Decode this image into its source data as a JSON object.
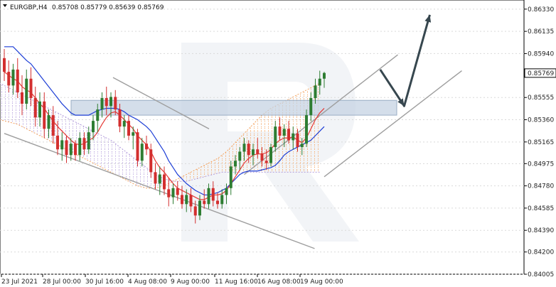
{
  "header": {
    "symbol": "EURGBP,H4",
    "ohlc": "0.85708 0.85779 0.85639 0.85769"
  },
  "colors": {
    "bull": "#2e7d32",
    "bear": "#d32f2f",
    "tenkan": "#e53935",
    "kijun": "#1e3fd6",
    "cloud_orange": "#f4a460",
    "cloud_purple": "#b39ddb",
    "channel": "#9e9e9e",
    "arrow": "#37474f",
    "band": "#c5d3e3",
    "price_label_bg": "#ffffff",
    "grid": "#d9d9d9"
  },
  "chart_data": {
    "type": "candlestick",
    "title": "EURGBP,H4",
    "ylim": [
      0.84005,
      0.8641
    ],
    "y_ticks": [
      "0.86330",
      "0.86135",
      "0.85940",
      "0.85769",
      "0.85555",
      "0.85360",
      "0.85165",
      "0.84975",
      "0.84780",
      "0.84585",
      "0.84390",
      "0.84200",
      "0.84005"
    ],
    "x_ticks": [
      "23 Jul 2021",
      "28 Jul 00:00",
      "30 Jul 16:00",
      "4 Aug 08:00",
      "9 Aug 00:00",
      "11 Aug 16:00",
      "16 Aug 08:00",
      "19 Aug 00:00"
    ],
    "last_price": "0.85769",
    "grid": true,
    "series": [
      {
        "kind": "candles",
        "ohlc": [
          [
            0.859,
            0.8598,
            0.857,
            0.8578
          ],
          [
            0.8578,
            0.8588,
            0.856,
            0.8566
          ],
          [
            0.8566,
            0.8585,
            0.8558,
            0.858
          ],
          [
            0.858,
            0.859,
            0.8555,
            0.856
          ],
          [
            0.856,
            0.8575,
            0.854,
            0.855
          ],
          [
            0.855,
            0.858,
            0.8545,
            0.8572
          ],
          [
            0.8572,
            0.8582,
            0.8548,
            0.8555
          ],
          [
            0.8555,
            0.8565,
            0.853,
            0.8538
          ],
          [
            0.8538,
            0.856,
            0.853,
            0.8552
          ],
          [
            0.8552,
            0.856,
            0.852,
            0.8528
          ],
          [
            0.8528,
            0.8545,
            0.852,
            0.854
          ],
          [
            0.854,
            0.8548,
            0.8515,
            0.8522
          ],
          [
            0.8522,
            0.8535,
            0.8505,
            0.851
          ],
          [
            0.851,
            0.8525,
            0.85,
            0.8518
          ],
          [
            0.8518,
            0.8522,
            0.8498,
            0.8505
          ],
          [
            0.8505,
            0.852,
            0.85,
            0.8515
          ],
          [
            0.8515,
            0.8518,
            0.85,
            0.8505
          ],
          [
            0.8505,
            0.8525,
            0.85,
            0.852
          ],
          [
            0.852,
            0.8525,
            0.8505,
            0.851
          ],
          [
            0.851,
            0.853,
            0.8506,
            0.8525
          ],
          [
            0.8525,
            0.854,
            0.8518,
            0.8535
          ],
          [
            0.8535,
            0.855,
            0.8525,
            0.8545
          ],
          [
            0.8545,
            0.856,
            0.8538,
            0.8555
          ],
          [
            0.8555,
            0.8565,
            0.854,
            0.8548
          ],
          [
            0.8548,
            0.856,
            0.8538,
            0.8556
          ],
          [
            0.8556,
            0.8562,
            0.854,
            0.8545
          ],
          [
            0.8545,
            0.855,
            0.8525,
            0.853
          ],
          [
            0.853,
            0.854,
            0.852,
            0.8535
          ],
          [
            0.8535,
            0.854,
            0.8518,
            0.8522
          ],
          [
            0.8522,
            0.853,
            0.851,
            0.8525
          ],
          [
            0.8525,
            0.8528,
            0.8495,
            0.85
          ],
          [
            0.85,
            0.852,
            0.8495,
            0.8515
          ],
          [
            0.8515,
            0.8522,
            0.8505,
            0.851
          ],
          [
            0.851,
            0.8515,
            0.8485,
            0.849
          ],
          [
            0.849,
            0.8498,
            0.8475,
            0.848
          ],
          [
            0.848,
            0.8495,
            0.847,
            0.8488
          ],
          [
            0.8488,
            0.8495,
            0.847,
            0.8475
          ],
          [
            0.8475,
            0.8485,
            0.846,
            0.8468
          ],
          [
            0.8468,
            0.848,
            0.8462,
            0.8476
          ],
          [
            0.8476,
            0.8482,
            0.8465,
            0.847
          ],
          [
            0.847,
            0.8478,
            0.8458,
            0.8462
          ],
          [
            0.8462,
            0.8475,
            0.8455,
            0.847
          ],
          [
            0.847,
            0.8476,
            0.8455,
            0.846
          ],
          [
            0.846,
            0.8465,
            0.8445,
            0.8452
          ],
          [
            0.8452,
            0.847,
            0.8448,
            0.8465
          ],
          [
            0.8465,
            0.8475,
            0.8458,
            0.8462
          ],
          [
            0.8462,
            0.848,
            0.8458,
            0.8476
          ],
          [
            0.8476,
            0.8482,
            0.846,
            0.8465
          ],
          [
            0.8465,
            0.8472,
            0.8458,
            0.8462
          ],
          [
            0.8462,
            0.8475,
            0.8458,
            0.847
          ],
          [
            0.847,
            0.848,
            0.8462,
            0.8476
          ],
          [
            0.8476,
            0.85,
            0.847,
            0.8495
          ],
          [
            0.8495,
            0.8505,
            0.8488,
            0.85
          ],
          [
            0.85,
            0.8512,
            0.8492,
            0.8508
          ],
          [
            0.8508,
            0.852,
            0.85,
            0.8515
          ],
          [
            0.8515,
            0.8518,
            0.8498,
            0.8505
          ],
          [
            0.8505,
            0.8515,
            0.8496,
            0.851
          ],
          [
            0.851,
            0.852,
            0.8502,
            0.8506
          ],
          [
            0.8506,
            0.8512,
            0.8495,
            0.85
          ],
          [
            0.85,
            0.851,
            0.8492,
            0.8498
          ],
          [
            0.8498,
            0.8515,
            0.8495,
            0.8512
          ],
          [
            0.8512,
            0.8535,
            0.8508,
            0.853
          ],
          [
            0.853,
            0.8538,
            0.8518,
            0.8522
          ],
          [
            0.8522,
            0.8532,
            0.8512,
            0.8528
          ],
          [
            0.8528,
            0.8535,
            0.8515,
            0.8518
          ],
          [
            0.8518,
            0.853,
            0.851,
            0.8524
          ],
          [
            0.8524,
            0.8528,
            0.8508,
            0.8512
          ],
          [
            0.8512,
            0.852,
            0.8505,
            0.8515
          ],
          [
            0.8515,
            0.8545,
            0.8512,
            0.854
          ],
          [
            0.854,
            0.856,
            0.8535,
            0.8555
          ],
          [
            0.8555,
            0.8572,
            0.855,
            0.8566
          ],
          [
            0.8566,
            0.8579,
            0.8558,
            0.8572
          ],
          [
            0.8572,
            0.8578,
            0.8564,
            0.8577
          ]
        ]
      },
      {
        "name": "",
        "kind": "tenkan-sen",
        "values": [
          0.8578,
          0.8575,
          0.8572,
          0.857,
          0.8565,
          0.8562,
          0.856,
          0.8555,
          0.855,
          0.8546,
          0.854,
          0.8535,
          0.853,
          0.8526,
          0.8522,
          0.8518,
          0.8515,
          0.8514,
          0.8515,
          0.8518,
          0.852,
          0.8525,
          0.8532,
          0.8538,
          0.8542,
          0.8543,
          0.854,
          0.8536,
          0.8532,
          0.8528,
          0.8522,
          0.8518,
          0.8514,
          0.8508,
          0.85,
          0.8494,
          0.849,
          0.8485,
          0.848,
          0.8476,
          0.8474,
          0.8472,
          0.847,
          0.8468,
          0.8466,
          0.8466,
          0.8468,
          0.847,
          0.847,
          0.8471,
          0.8474,
          0.848,
          0.8486,
          0.8492,
          0.8498,
          0.8502,
          0.8505,
          0.8506,
          0.8506,
          0.8507,
          0.851,
          0.8515,
          0.8518,
          0.852,
          0.852,
          0.8521,
          0.8518,
          0.8516,
          0.852,
          0.8528,
          0.8536,
          0.8542,
          0.8546
        ]
      },
      {
        "name": "",
        "kind": "kijun-sen",
        "values": [
          0.86,
          0.86,
          0.86,
          0.8596,
          0.8592,
          0.8588,
          0.8585,
          0.858,
          0.8575,
          0.857,
          0.8565,
          0.856,
          0.8555,
          0.855,
          0.8546,
          0.8542,
          0.854,
          0.854,
          0.854,
          0.854,
          0.8542,
          0.8544,
          0.8545,
          0.8546,
          0.8546,
          0.8546,
          0.8545,
          0.8543,
          0.854,
          0.8538,
          0.8536,
          0.8533,
          0.853,
          0.8526,
          0.852,
          0.8514,
          0.8508,
          0.85,
          0.8494,
          0.8488,
          0.8484,
          0.848,
          0.8477,
          0.8474,
          0.8472,
          0.847,
          0.847,
          0.8471,
          0.8472,
          0.8474,
          0.8476,
          0.848,
          0.8484,
          0.8488,
          0.849,
          0.8491,
          0.8491,
          0.8491,
          0.8492,
          0.8493,
          0.8494,
          0.8496,
          0.85,
          0.8505,
          0.8508,
          0.851,
          0.8512,
          0.8514,
          0.8516,
          0.8518,
          0.8522,
          0.8526,
          0.853
        ]
      },
      {
        "kind": "senkou-span-a",
        "values": [
          0.859,
          0.859,
          0.8588,
          0.8586,
          0.8584,
          0.8582,
          0.858,
          0.8578,
          0.8576,
          0.8572,
          0.8568,
          0.8565,
          0.8562,
          0.856,
          0.8558,
          0.8556,
          0.8554,
          0.8552,
          0.855,
          0.8548,
          0.8546,
          0.8544,
          0.8542,
          0.854,
          0.8538,
          0.8536,
          0.8535,
          0.8534,
          0.8533,
          0.8532,
          0.853,
          0.8528,
          0.8526,
          0.8524,
          0.8522,
          0.852,
          0.8518,
          0.8516,
          0.8514,
          0.8512,
          0.851,
          0.8508,
          0.8506,
          0.8504,
          0.8502,
          0.85,
          0.8498,
          0.8496,
          0.8494,
          0.8492,
          0.849,
          0.8488,
          0.8486,
          0.8484,
          0.8482,
          0.848,
          0.8478,
          0.8477,
          0.8476,
          0.8476,
          0.8476,
          0.8477,
          0.8478,
          0.848,
          0.8482,
          0.8484,
          0.8486,
          0.8488,
          0.849,
          0.8492,
          0.8494,
          0.8496,
          0.8498,
          0.85,
          0.8502,
          0.8505,
          0.8508,
          0.8512,
          0.8516,
          0.852,
          0.8524,
          0.8528,
          0.8532,
          0.8536,
          0.854,
          0.8543,
          0.8546,
          0.8548,
          0.855,
          0.8552,
          0.8554,
          0.8556,
          0.8558,
          0.856,
          0.8562,
          0.8564,
          0.8566,
          0.8568
        ]
      },
      {
        "kind": "senkou-span-b",
        "values": [
          0.8575,
          0.8576,
          0.8577,
          0.8578,
          0.8579,
          0.858,
          0.8581,
          0.8582,
          0.8583,
          0.8584,
          0.8585,
          0.8586,
          0.8586,
          0.8586,
          0.8586,
          0.8585,
          0.8584,
          0.8583,
          0.8582,
          0.858,
          0.8578,
          0.8576,
          0.8574,
          0.8572,
          0.857,
          0.8568,
          0.8566,
          0.8564,
          0.8562,
          0.856,
          0.8558,
          0.8556,
          0.8554,
          0.8552,
          0.855,
          0.8548,
          0.8546,
          0.8544,
          0.8542,
          0.854,
          0.8538,
          0.8536,
          0.8534,
          0.8532,
          0.853,
          0.8528,
          0.8526,
          0.8524,
          0.8522,
          0.852,
          0.8518,
          0.8515,
          0.8512,
          0.8509,
          0.8506,
          0.8503,
          0.85,
          0.8497,
          0.8494,
          0.8491,
          0.8488,
          0.8486,
          0.8484,
          0.8483,
          0.8482,
          0.8482,
          0.8482,
          0.8482,
          0.8483,
          0.8484,
          0.8485,
          0.8486,
          0.8487,
          0.8488,
          0.8489,
          0.849,
          0.849,
          0.849,
          0.849,
          0.849,
          0.849,
          0.849,
          0.849,
          0.849,
          0.849,
          0.849,
          0.849,
          0.849,
          0.849,
          0.849,
          0.849,
          0.849,
          0.849,
          0.849,
          0.849,
          0.849,
          0.849,
          0.849
        ]
      },
      {
        "kind": "channel-upper-descending",
        "points": [
          [
            0.34,
            0.8573
          ],
          [
            0.64,
            0.8528
          ]
        ]
      },
      {
        "kind": "channel-lower-descending",
        "points": [
          [
            0,
            0.8524
          ],
          [
            0.97,
            0.8423
          ]
        ]
      },
      {
        "kind": "channel-upper-ascending",
        "points": [
          [
            0.75,
            0.8488
          ],
          [
            1.23,
            0.8593
          ]
        ]
      },
      {
        "kind": "channel-lower-ascending",
        "points": [
          [
            1.0,
            0.8486
          ],
          [
            1.43,
            0.8579
          ]
        ]
      },
      {
        "kind": "horizontal-zone",
        "range": [
          0.854,
          0.8553
        ]
      },
      {
        "kind": "forecast-arrow",
        "points": [
          [
            1.175,
            0.858
          ],
          [
            1.25,
            0.8548
          ],
          [
            1.33,
            0.8628
          ]
        ]
      }
    ]
  }
}
